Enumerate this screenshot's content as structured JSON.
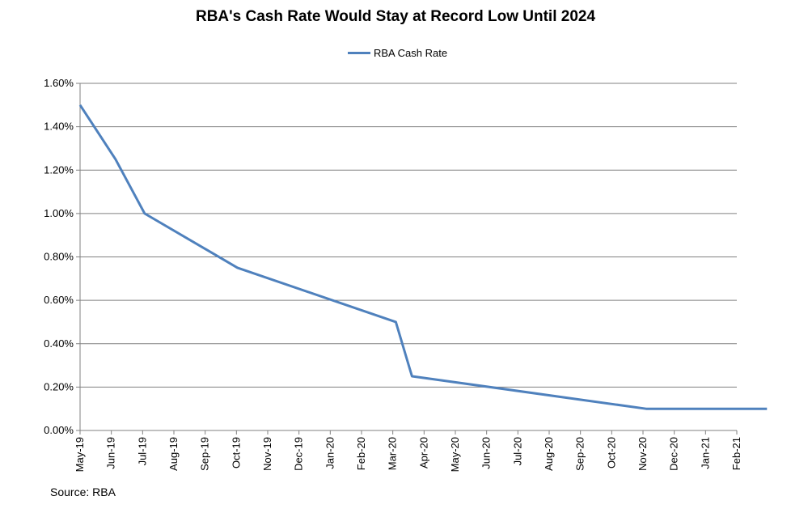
{
  "chart_data": {
    "type": "line",
    "title": "RBA's Cash Rate Would Stay at Record Low Until 2024",
    "xlabel": "",
    "ylabel": "",
    "categories": [
      "May-19",
      "Jun-19",
      "Jul-19",
      "Aug-19",
      "Sep-19",
      "Oct-19",
      "Nov-19",
      "Dec-19",
      "Jan-20",
      "Feb-20",
      "Mar-20",
      "Apr-20",
      "May-20",
      "Jun-20",
      "Jul-20",
      "Aug-20",
      "Sep-20",
      "Oct-20",
      "Nov-20",
      "Dec-20",
      "Jan-21",
      "Feb-21"
    ],
    "ylim": [
      0,
      1.6
    ],
    "yticks": [
      0,
      0.2,
      0.4,
      0.6,
      0.8,
      1.0,
      1.2,
      1.4,
      1.6
    ],
    "ytick_labels": [
      "0.00%",
      "0.20%",
      "0.40%",
      "0.60%",
      "0.80%",
      "1.00%",
      "1.20%",
      "1.40%",
      "1.60%"
    ],
    "grid": true,
    "legend_position": "top-center",
    "series": [
      {
        "name": "RBA Cash Rate",
        "color": "#4f81bd",
        "points": [
          {
            "x": "2019-05-01",
            "y": 1.5
          },
          {
            "x": "2019-06-05",
            "y": 1.25
          },
          {
            "x": "2019-07-03",
            "y": 1.0
          },
          {
            "x": "2019-10-02",
            "y": 0.75
          },
          {
            "x": "2020-03-04",
            "y": 0.5
          },
          {
            "x": "2020-03-20",
            "y": 0.25
          },
          {
            "x": "2020-11-04",
            "y": 0.1
          },
          {
            "x": "2021-02-28",
            "y": 0.1
          }
        ]
      }
    ]
  },
  "source": "Source: RBA"
}
